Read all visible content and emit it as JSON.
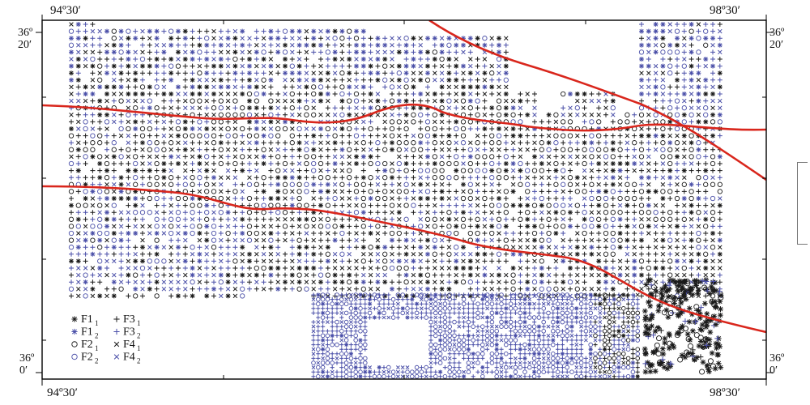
{
  "map": {
    "corner_labels": {
      "lon_west": "94º30′",
      "lon_east": "98º30′",
      "lat_north": [
        "36º",
        "20′"
      ],
      "lat_south": [
        "36º",
        "0′"
      ]
    },
    "colors": {
      "black_symbol": "#1a1a1a",
      "blue_symbol": "#4a4fa8",
      "fault_line": "#d9261c",
      "frame": "#000000"
    },
    "legend": [
      {
        "symbol": "*",
        "label": "F1",
        "sub": "1",
        "color": "#1a1a1a",
        "icon": "asterisk-icon"
      },
      {
        "symbol": "*",
        "label": "F1",
        "sub": "2",
        "color": "#4a4fa8",
        "icon": "asterisk-icon"
      },
      {
        "symbol": "o",
        "label": "F2",
        "sub": "1",
        "color": "#1a1a1a",
        "icon": "circle-icon"
      },
      {
        "symbol": "o",
        "label": "F2",
        "sub": "2",
        "color": "#4a4fa8",
        "icon": "circle-icon"
      },
      {
        "symbol": "+",
        "label": "F3",
        "sub": "1",
        "color": "#1a1a1a",
        "icon": "plus-icon"
      },
      {
        "symbol": "+",
        "label": "F3",
        "sub": "2",
        "color": "#4a4fa8",
        "icon": "plus-icon"
      },
      {
        "symbol": "x",
        "label": "F4",
        "sub": "1",
        "color": "#1a1a1a",
        "icon": "cross-icon"
      },
      {
        "symbol": "x",
        "label": "F4",
        "sub": "2",
        "color": "#4a4fa8",
        "icon": "cross-icon"
      }
    ]
  }
}
